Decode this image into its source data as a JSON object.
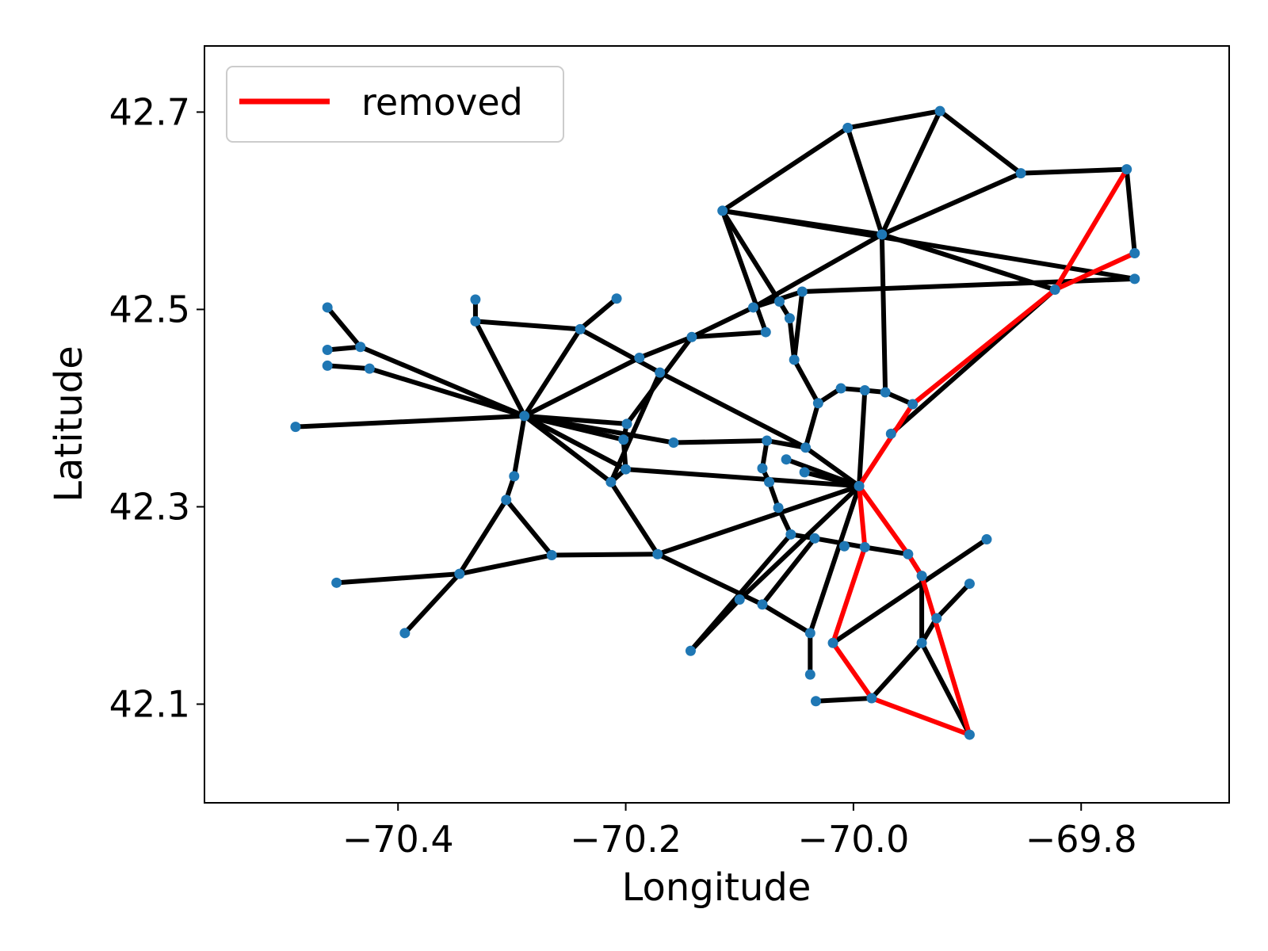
{
  "chart_data": {
    "type": "scatter",
    "title": "",
    "xlabel": "Longitude",
    "ylabel": "Latitude",
    "xlim": [
      -70.57,
      -69.67
    ],
    "ylim": [
      42.0,
      42.767
    ],
    "xticks": [
      {
        "value": -70.4,
        "label": "−70.4"
      },
      {
        "value": -70.2,
        "label": "−70.2"
      },
      {
        "value": -70.0,
        "label": "−70.0"
      },
      {
        "value": -69.8,
        "label": "−69.8"
      }
    ],
    "yticks": [
      {
        "value": 42.1,
        "label": "42.1"
      },
      {
        "value": 42.3,
        "label": "42.3"
      },
      {
        "value": 42.5,
        "label": "42.5"
      },
      {
        "value": 42.7,
        "label": "42.7"
      }
    ],
    "grid": false,
    "legend": {
      "position": "top-left",
      "entries": [
        {
          "label": "removed",
          "color": "#ff0000"
        }
      ]
    },
    "colors": {
      "node": "#1f77b4",
      "edge": "#000000",
      "removed": "#ff0000"
    },
    "nodes": [
      [
        -69.924,
        42.701
      ],
      [
        -70.005,
        42.684
      ],
      [
        -69.853,
        42.638
      ],
      [
        -69.76,
        42.642
      ],
      [
        -70.115,
        42.6
      ],
      [
        -69.975,
        42.576
      ],
      [
        -69.753,
        42.557
      ],
      [
        -69.753,
        42.531
      ],
      [
        -69.823,
        42.52
      ],
      [
        -70.208,
        42.511
      ],
      [
        -70.332,
        42.51
      ],
      [
        -70.462,
        42.502
      ],
      [
        -70.045,
        42.518
      ],
      [
        -70.065,
        42.508
      ],
      [
        -70.088,
        42.502
      ],
      [
        -70.332,
        42.488
      ],
      [
        -70.24,
        42.48
      ],
      [
        -70.056,
        42.491
      ],
      [
        -70.142,
        42.472
      ],
      [
        -70.077,
        42.477
      ],
      [
        -70.433,
        42.462
      ],
      [
        -70.462,
        42.459
      ],
      [
        -70.188,
        42.451
      ],
      [
        -70.052,
        42.449
      ],
      [
        -70.462,
        42.443
      ],
      [
        -70.425,
        42.44
      ],
      [
        -70.17,
        42.436
      ],
      [
        -70.011,
        42.42
      ],
      [
        -69.99,
        42.418
      ],
      [
        -69.972,
        42.416
      ],
      [
        -69.948,
        42.404
      ],
      [
        -70.031,
        42.405
      ],
      [
        -69.967,
        42.374
      ],
      [
        -70.289,
        42.392
      ],
      [
        -70.49,
        42.381
      ],
      [
        -70.199,
        42.384
      ],
      [
        -70.202,
        42.368
      ],
      [
        -70.158,
        42.365
      ],
      [
        -70.076,
        42.367
      ],
      [
        -70.042,
        42.36
      ],
      [
        -70.059,
        42.348
      ],
      [
        -70.08,
        42.339
      ],
      [
        -70.2,
        42.338
      ],
      [
        -70.043,
        42.335
      ],
      [
        -70.298,
        42.331
      ],
      [
        -70.074,
        42.325
      ],
      [
        -70.213,
        42.325
      ],
      [
        -69.995,
        42.321
      ],
      [
        -70.305,
        42.307
      ],
      [
        -70.066,
        42.299
      ],
      [
        -70.055,
        42.272
      ],
      [
        -70.034,
        42.268
      ],
      [
        -70.008,
        42.26
      ],
      [
        -69.99,
        42.259
      ],
      [
        -69.952,
        42.252
      ],
      [
        -70.265,
        42.251
      ],
      [
        -70.172,
        42.252
      ],
      [
        -69.883,
        42.267
      ],
      [
        -70.346,
        42.232
      ],
      [
        -69.94,
        42.23
      ],
      [
        -70.454,
        42.223
      ],
      [
        -69.898,
        42.222
      ],
      [
        -70.1,
        42.206
      ],
      [
        -70.08,
        42.201
      ],
      [
        -69.927,
        42.187
      ],
      [
        -70.394,
        42.172
      ],
      [
        -70.038,
        42.172
      ],
      [
        -70.018,
        42.162
      ],
      [
        -69.94,
        42.162
      ],
      [
        -70.143,
        42.154
      ],
      [
        -70.038,
        42.13
      ],
      [
        -69.984,
        42.106
      ],
      [
        -70.033,
        42.103
      ],
      [
        -69.898,
        42.069
      ]
    ],
    "edges": [
      [
        1,
        0
      ],
      [
        0,
        5
      ],
      [
        0,
        2
      ],
      [
        1,
        4
      ],
      [
        1,
        5
      ],
      [
        2,
        3
      ],
      [
        3,
        6
      ],
      [
        2,
        5
      ],
      [
        4,
        5
      ],
      [
        4,
        13
      ],
      [
        4,
        19
      ],
      [
        4,
        7
      ],
      [
        5,
        8
      ],
      [
        5,
        14
      ],
      [
        5,
        29
      ],
      [
        12,
        7
      ],
      [
        12,
        14
      ],
      [
        12,
        23
      ],
      [
        14,
        18
      ],
      [
        18,
        19
      ],
      [
        18,
        35
      ],
      [
        22,
        18
      ],
      [
        22,
        33
      ],
      [
        9,
        16
      ],
      [
        16,
        33
      ],
      [
        16,
        26
      ],
      [
        10,
        15
      ],
      [
        15,
        16
      ],
      [
        15,
        33
      ],
      [
        11,
        20
      ],
      [
        20,
        21
      ],
      [
        20,
        33
      ],
      [
        24,
        25
      ],
      [
        25,
        33
      ],
      [
        34,
        33
      ],
      [
        33,
        36
      ],
      [
        33,
        44
      ],
      [
        33,
        35
      ],
      [
        33,
        42
      ],
      [
        33,
        46
      ],
      [
        33,
        37
      ],
      [
        44,
        48
      ],
      [
        48,
        55
      ],
      [
        48,
        58
      ],
      [
        58,
        65
      ],
      [
        58,
        60
      ],
      [
        58,
        55
      ],
      [
        55,
        56
      ],
      [
        56,
        46
      ],
      [
        26,
        46
      ],
      [
        26,
        39
      ],
      [
        46,
        42
      ],
      [
        36,
        42
      ],
      [
        36,
        35
      ],
      [
        37,
        38
      ],
      [
        38,
        39
      ],
      [
        38,
        41
      ],
      [
        41,
        45
      ],
      [
        45,
        49
      ],
      [
        49,
        50
      ],
      [
        50,
        51
      ],
      [
        51,
        53
      ],
      [
        53,
        54
      ],
      [
        42,
        47
      ],
      [
        39,
        47
      ],
      [
        40,
        47
      ],
      [
        43,
        47
      ],
      [
        47,
        56
      ],
      [
        47,
        62
      ],
      [
        47,
        66
      ],
      [
        50,
        69
      ],
      [
        51,
        63
      ],
      [
        63,
        56
      ],
      [
        63,
        66
      ],
      [
        62,
        69
      ],
      [
        66,
        70
      ],
      [
        13,
        17
      ],
      [
        17,
        23
      ],
      [
        23,
        31
      ],
      [
        31,
        27
      ],
      [
        27,
        28
      ],
      [
        28,
        29
      ],
      [
        29,
        30
      ],
      [
        31,
        39
      ],
      [
        28,
        47
      ],
      [
        32,
        8
      ],
      [
        57,
        67
      ],
      [
        61,
        64
      ],
      [
        64,
        68
      ],
      [
        59,
        68
      ],
      [
        59,
        54
      ],
      [
        68,
        73
      ],
      [
        68,
        71
      ],
      [
        71,
        72
      ]
    ],
    "removed_edges": [
      [
        3,
        8
      ],
      [
        8,
        6
      ],
      [
        8,
        30
      ],
      [
        30,
        47
      ],
      [
        47,
        54
      ],
      [
        54,
        59
      ],
      [
        59,
        73
      ],
      [
        73,
        71
      ],
      [
        71,
        67
      ],
      [
        67,
        53
      ],
      [
        53,
        47
      ]
    ]
  }
}
